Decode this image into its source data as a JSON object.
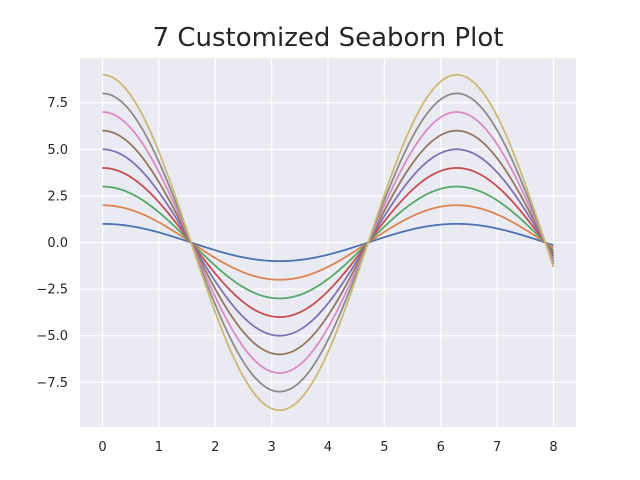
{
  "chart_data": {
    "type": "line",
    "title": "7 Customized Seaborn Plot",
    "xlabel": "",
    "ylabel": "",
    "xlim": [
      -0.4,
      8.4
    ],
    "ylim": [
      -9.9,
      9.9
    ],
    "grid": true,
    "background": "#eaeaf2",
    "grid_color": "#ffffff",
    "x_ticks": [
      0,
      1,
      2,
      3,
      4,
      5,
      6,
      7,
      8
    ],
    "x_tick_labels": [
      "0",
      "1",
      "2",
      "3",
      "4",
      "5",
      "6",
      "7",
      "8"
    ],
    "y_ticks": [
      7.5,
      5.0,
      2.5,
      0.0,
      -2.5,
      -5.0,
      -7.5
    ],
    "y_tick_labels": [
      "7.5",
      "5.0",
      "2.5",
      "0.0",
      "−2.5",
      "−5.0",
      "−7.5"
    ],
    "series_function": "amplitude * sin(x + 0.5 * pi)",
    "x_range": [
      0,
      8
    ],
    "series": [
      {
        "amplitude": 1,
        "color": "#4c72b0"
      },
      {
        "amplitude": 2,
        "color": "#dd8452"
      },
      {
        "amplitude": 3,
        "color": "#55a868"
      },
      {
        "amplitude": 4,
        "color": "#c44e52"
      },
      {
        "amplitude": 5,
        "color": "#8172b3"
      },
      {
        "amplitude": 6,
        "color": "#937860"
      },
      {
        "amplitude": 7,
        "color": "#da8bc3"
      },
      {
        "amplitude": 8,
        "color": "#8c8c8c"
      },
      {
        "amplitude": 9,
        "color": "#ccb974"
      }
    ]
  }
}
